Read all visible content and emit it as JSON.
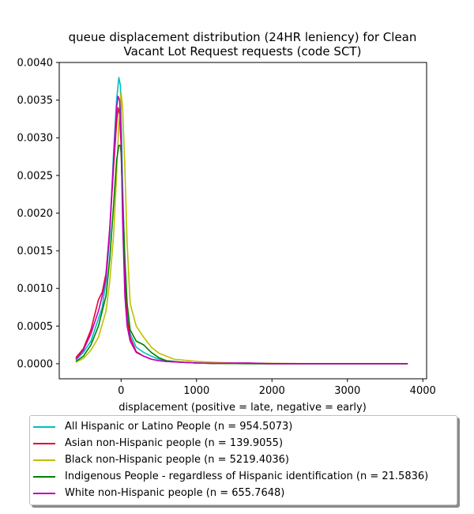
{
  "chart_data": {
    "type": "line",
    "title_line1": "queue displacement distribution (24HR leniency) for Clean",
    "title_line2": "Vacant Lot Request  requests (code SCT)",
    "xlabel": "displacement (positive = late, negative = early)",
    "ylabel": "",
    "xlim": [
      -820,
      4050
    ],
    "ylim": [
      -0.0002,
      0.004
    ],
    "x_ticks": [
      0,
      1000,
      2000,
      3000,
      4000
    ],
    "x_tick_labels": [
      "0",
      "1000",
      "2000",
      "3000",
      "4000"
    ],
    "y_ticks": [
      0.0,
      0.0005,
      0.001,
      0.0015,
      0.002,
      0.0025,
      0.003,
      0.0035,
      0.004
    ],
    "y_tick_labels": [
      "0.0000",
      "0.0005",
      "0.0010",
      "0.0015",
      "0.0020",
      "0.0025",
      "0.0030",
      "0.0035",
      "0.0040"
    ],
    "grid": false,
    "legend_position": "below",
    "series": [
      {
        "name": "All Hispanic or Latino People (n = 954.5073)",
        "color": "#00bfbf",
        "x": [
          -600,
          -500,
          -400,
          -300,
          -250,
          -200,
          -150,
          -100,
          -60,
          -30,
          -10,
          0,
          20,
          50,
          80,
          120,
          200,
          300,
          400,
          500,
          600,
          800,
          1000,
          1200,
          1500,
          2000,
          2500,
          3000,
          3500,
          3800
        ],
        "y": [
          5e-05,
          0.00015,
          0.0003,
          0.0006,
          0.00075,
          0.0011,
          0.0017,
          0.0028,
          0.0035,
          0.0038,
          0.0037,
          0.0033,
          0.0024,
          0.0013,
          0.0007,
          0.0004,
          0.00022,
          0.00015,
          0.0001,
          6e-05,
          4e-05,
          2e-05,
          1e-05,
          5e-06,
          2e-06,
          0.0,
          0.0,
          0.0,
          0.0,
          0.0
        ]
      },
      {
        "name": "Asian non-Hispanic people (n = 139.9055)",
        "color": "#e6002e",
        "x": [
          -600,
          -500,
          -400,
          -300,
          -250,
          -200,
          -150,
          -100,
          -60,
          -40,
          -20,
          0,
          20,
          50,
          80,
          120,
          200,
          300,
          400,
          500,
          600,
          800,
          1000,
          1200,
          1500,
          2000,
          2500,
          3000,
          3500,
          3800
        ],
        "y": [
          8e-05,
          0.0002,
          0.00045,
          0.00085,
          0.00095,
          0.0012,
          0.0018,
          0.0026,
          0.0032,
          0.0034,
          0.0033,
          0.0029,
          0.0021,
          0.0012,
          0.0006,
          0.00035,
          0.00016,
          0.0001,
          6e-05,
          4e-05,
          3e-05,
          2e-05,
          1e-05,
          5e-06,
          2e-06,
          0.0,
          0.0,
          0.0,
          0.0,
          0.0
        ]
      },
      {
        "name": "Black non-Hispanic people (n = 5219.4036)",
        "color": "#bfbf00",
        "x": [
          -600,
          -500,
          -400,
          -300,
          -200,
          -150,
          -100,
          -60,
          -30,
          0,
          20,
          50,
          80,
          120,
          200,
          300,
          400,
          500,
          600,
          700,
          800,
          1000,
          1200,
          1500,
          2000,
          2500,
          3000,
          3500,
          3800
        ],
        "y": [
          2e-05,
          7e-05,
          0.00018,
          0.00035,
          0.0007,
          0.0011,
          0.0017,
          0.0025,
          0.0032,
          0.0036,
          0.0034,
          0.0026,
          0.0016,
          0.0008,
          0.0005,
          0.00035,
          0.00022,
          0.00014,
          0.0001,
          6e-05,
          5e-05,
          3e-05,
          2e-05,
          1e-05,
          5e-06,
          0.0,
          0.0,
          0.0,
          0.0
        ]
      },
      {
        "name": "Indigenous People - regardless of Hispanic identification (n = 21.5836)",
        "color": "#008000",
        "x": [
          -600,
          -500,
          -400,
          -300,
          -200,
          -150,
          -100,
          -60,
          -30,
          -10,
          0,
          20,
          50,
          80,
          120,
          200,
          300,
          400,
          500,
          600,
          800,
          1000,
          1200,
          1500,
          2000,
          2500,
          3000,
          3500,
          3800
        ],
        "y": [
          3e-05,
          0.0001,
          0.00025,
          0.0005,
          0.0009,
          0.0014,
          0.0021,
          0.0027,
          0.0029,
          0.0029,
          0.0028,
          0.0022,
          0.0014,
          0.0008,
          0.00045,
          0.0003,
          0.00025,
          0.00015,
          8e-05,
          4e-05,
          2e-05,
          1e-05,
          5e-06,
          2e-06,
          0.0,
          0.0,
          0.0,
          0.0,
          0.0
        ]
      },
      {
        "name": "White non-Hispanic people (n = 655.7648)",
        "color": "#bf00bf",
        "x": [
          -600,
          -500,
          -400,
          -300,
          -250,
          -200,
          -150,
          -100,
          -60,
          -40,
          -20,
          0,
          20,
          50,
          80,
          120,
          200,
          300,
          400,
          500,
          600,
          800,
          1000,
          1200,
          1500,
          1700,
          2000,
          2500,
          3000,
          3500,
          3800
        ],
        "y": [
          6e-05,
          0.00018,
          0.0004,
          0.0007,
          0.0009,
          0.00115,
          0.0018,
          0.0027,
          0.0034,
          0.00355,
          0.0035,
          0.003,
          0.0019,
          0.0009,
          0.0005,
          0.0003,
          0.00015,
          0.0001,
          6e-05,
          4e-05,
          3e-05,
          2e-05,
          1e-05,
          5e-06,
          1e-05,
          1e-05,
          0.0,
          0.0,
          0.0,
          0.0,
          0.0
        ]
      }
    ]
  }
}
